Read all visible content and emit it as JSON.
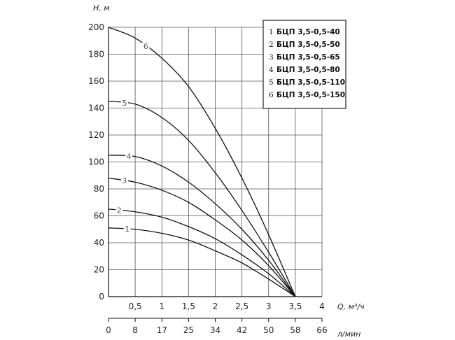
{
  "chart_data": {
    "type": "line",
    "ylabel": "H, м",
    "xlabel": "Q, м³/ч",
    "xlabel2": "л/мин",
    "ylim": [
      0,
      200
    ],
    "xlim": [
      0,
      4
    ],
    "grid": true,
    "y_ticks": [
      "0",
      "20",
      "40",
      "60",
      "80",
      "100",
      "120",
      "140",
      "160",
      "180",
      "200"
    ],
    "x_ticks": [
      "0,5",
      "1",
      "1,5",
      "2",
      "2,5",
      "3",
      "3,5",
      "4"
    ],
    "x_ticks_lmin": [
      "0",
      "8",
      "17",
      "25",
      "34",
      "42",
      "50",
      "58",
      "66"
    ],
    "legend_position": "top-right",
    "series": [
      {
        "name": "БЦП 3,5-0,5-40",
        "label": "1",
        "x": [
          0,
          0.5,
          1,
          1.5,
          2,
          2.5,
          3,
          3.5
        ],
        "y": [
          51,
          50,
          47,
          42,
          34,
          25,
          13,
          0
        ]
      },
      {
        "name": "БЦП 3,5-0,5-50",
        "label": "2",
        "x": [
          0,
          0.5,
          1,
          1.5,
          2,
          2.5,
          3,
          3.5
        ],
        "y": [
          65,
          63,
          59,
          52,
          43,
          31,
          17,
          0
        ]
      },
      {
        "name": "БЦП 3,5-0,5-65",
        "label": "3",
        "x": [
          0,
          0.5,
          1,
          1.5,
          2,
          2.5,
          3,
          3.5
        ],
        "y": [
          88,
          85,
          79,
          70,
          57,
          42,
          23,
          0
        ]
      },
      {
        "name": "БЦП 3,5-0,5-80",
        "label": "4",
        "x": [
          0,
          0.5,
          1,
          1.5,
          2,
          2.5,
          3,
          3.5
        ],
        "y": [
          105,
          104,
          97,
          85,
          69,
          50,
          27,
          0
        ]
      },
      {
        "name": "БЦП 3,5-0,5-110",
        "label": "5",
        "x": [
          0,
          0.5,
          1,
          1.5,
          2,
          2.5,
          3,
          3.5
        ],
        "y": [
          145,
          143,
          133,
          116,
          92,
          64,
          33,
          0
        ]
      },
      {
        "name": "БЦП 3,5-0,5-150",
        "label": "6",
        "x": [
          0,
          0.5,
          1,
          1.5,
          2,
          2.5,
          3,
          3.5
        ],
        "y": [
          200,
          192,
          177,
          156,
          125,
          88,
          46,
          0
        ]
      }
    ]
  }
}
